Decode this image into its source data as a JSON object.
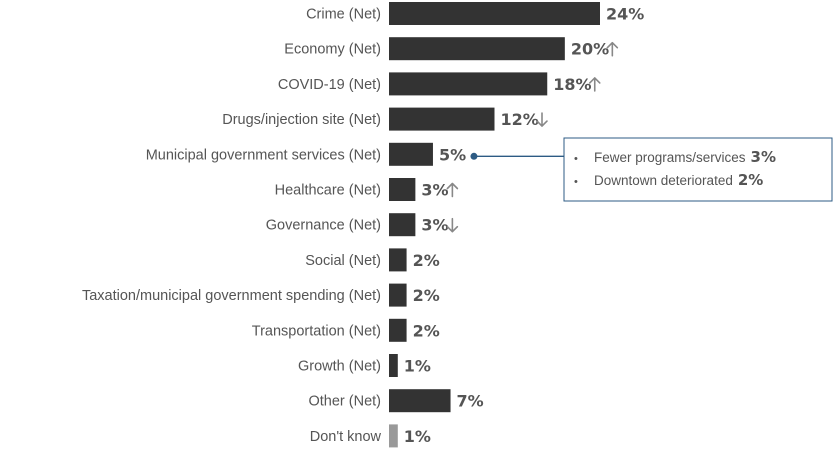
{
  "chart_data": {
    "type": "bar",
    "orientation": "horizontal",
    "categories": [
      "Crime (Net)",
      "Economy (Net)",
      "COVID-19 (Net)",
      "Drugs/injection site (Net)",
      "Municipal government services (Net)",
      "Healthcare (Net)",
      "Governance (Net)",
      "Social (Net)",
      "Taxation/municipal government spending (Net)",
      "Transportation (Net)",
      "Growth (Net)",
      "Other (Net)",
      "Don't know"
    ],
    "values": [
      24,
      20,
      18,
      12,
      5,
      3,
      3,
      2,
      2,
      2,
      1,
      7,
      1
    ],
    "value_labels": [
      "24%",
      "20%",
      "18%",
      "12%",
      "5%",
      "3%",
      "3%",
      "2%",
      "2%",
      "2%",
      "1%",
      "7%",
      "1%"
    ],
    "trends": [
      "",
      "up",
      "up",
      "down",
      "",
      "up",
      "down",
      "",
      "",
      "",
      "",
      "",
      ""
    ],
    "bar_colors": [
      "#333333",
      "#333333",
      "#333333",
      "#333333",
      "#333333",
      "#333333",
      "#333333",
      "#333333",
      "#333333",
      "#333333",
      "#333333",
      "#333333",
      "#999999"
    ],
    "xlim": [
      0,
      24
    ],
    "title": "",
    "xlabel": "",
    "ylabel": "",
    "grid": false,
    "legend": "none",
    "callout": {
      "category_index": 4,
      "items": [
        {
          "label": "Fewer programs/services",
          "value": "3%"
        },
        {
          "label": "Downtown deteriorated",
          "value": "2%"
        }
      ],
      "bullet": "•",
      "border_color": "#2d5b84"
    }
  },
  "colors": {
    "bar": "#333333",
    "dont_know_bar": "#999999",
    "text": "#555555",
    "arrow": "#888888",
    "callout_border": "#2d5b84"
  }
}
